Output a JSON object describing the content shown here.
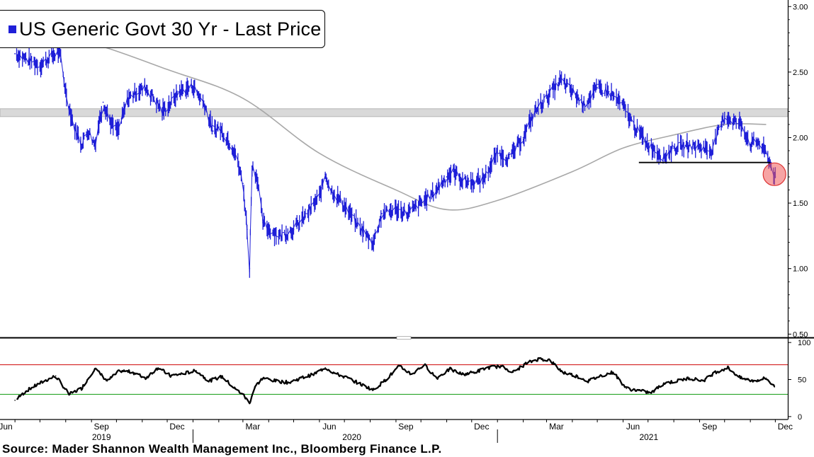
{
  "legend": {
    "label": "US Generic Govt 30 Yr - Last Price",
    "color": "#1f1fd8"
  },
  "source": "Source: Mader Shannon Wealth Management Inc., Bloomberg Finance L.P.",
  "chart_data": [
    {
      "type": "line",
      "series": [
        {
          "name": "US Generic Govt 30 Yr - Last Price",
          "color": "#1f1fd8",
          "x": [
            "2019-06-01",
            "2019-06-15",
            "2019-07-01",
            "2019-07-15",
            "2019-07-25",
            "2019-08-01",
            "2019-08-10",
            "2019-08-20",
            "2019-08-28",
            "2019-09-05",
            "2019-09-15",
            "2019-09-25",
            "2019-10-03",
            "2019-10-15",
            "2019-10-25",
            "2019-11-05",
            "2019-11-15",
            "2019-11-25",
            "2019-12-05",
            "2019-12-15",
            "2020-01-01",
            "2020-01-15",
            "2020-01-25",
            "2020-02-01",
            "2020-02-10",
            "2020-02-20",
            "2020-03-01",
            "2020-03-06",
            "2020-03-09",
            "2020-03-12",
            "2020-03-18",
            "2020-03-25",
            "2020-04-01",
            "2020-04-15",
            "2020-05-01",
            "2020-05-15",
            "2020-06-01",
            "2020-06-08",
            "2020-06-15",
            "2020-07-01",
            "2020-07-15",
            "2020-08-01",
            "2020-08-05",
            "2020-08-15",
            "2020-09-01",
            "2020-09-15",
            "2020-10-01",
            "2020-10-15",
            "2020-11-01",
            "2020-11-09",
            "2020-11-20",
            "2020-12-01",
            "2020-12-15",
            "2021-01-01",
            "2021-01-15",
            "2021-02-01",
            "2021-02-15",
            "2021-03-01",
            "2021-03-18",
            "2021-04-01",
            "2021-04-15",
            "2021-05-01",
            "2021-05-15",
            "2021-06-01",
            "2021-06-15",
            "2021-07-01",
            "2021-07-20",
            "2021-08-01",
            "2021-08-15",
            "2021-09-01",
            "2021-09-15",
            "2021-10-01",
            "2021-10-21",
            "2021-11-01",
            "2021-11-10",
            "2021-11-20",
            "2021-12-01"
          ],
          "values": [
            2.64,
            2.6,
            2.55,
            2.62,
            2.65,
            2.35,
            2.1,
            1.95,
            2.05,
            1.95,
            2.27,
            2.1,
            2.05,
            2.3,
            2.35,
            2.38,
            2.3,
            2.2,
            2.26,
            2.35,
            2.39,
            2.25,
            2.05,
            2.08,
            2.0,
            1.9,
            1.65,
            1.3,
            1.0,
            1.78,
            1.7,
            1.35,
            1.3,
            1.25,
            1.3,
            1.4,
            1.55,
            1.72,
            1.6,
            1.48,
            1.35,
            1.22,
            1.2,
            1.42,
            1.45,
            1.42,
            1.5,
            1.57,
            1.7,
            1.74,
            1.67,
            1.66,
            1.68,
            1.88,
            1.84,
            2.0,
            2.2,
            2.3,
            2.44,
            2.35,
            2.25,
            2.38,
            2.35,
            2.24,
            2.08,
            1.95,
            1.85,
            1.92,
            1.94,
            1.93,
            1.9,
            2.16,
            2.1,
            1.95,
            1.97,
            1.88,
            1.7
          ]
        },
        {
          "name": "",
          "color": "#a8a8a8",
          "x": [
            "2019-06-01",
            "2019-09-01",
            "2019-12-01",
            "2020-03-01",
            "2020-06-01",
            "2020-09-01",
            "2020-11-01",
            "2021-01-01",
            "2021-04-01",
            "2021-06-01",
            "2021-08-01",
            "2021-10-01",
            "2021-11-20"
          ],
          "values": [
            2.85,
            2.72,
            2.52,
            2.3,
            1.88,
            1.6,
            1.45,
            1.52,
            1.74,
            1.92,
            2.02,
            2.1,
            2.1
          ]
        }
      ],
      "x_ticks": [
        "Jun",
        "Sep",
        "Dec",
        "Mar",
        "Jun",
        "Sep",
        "Dec",
        "Mar",
        "Jun",
        "Sep",
        "Dec"
      ],
      "year_labels": [
        "2019",
        "2020",
        "2021"
      ],
      "y_ticks": [
        "0.50",
        "1.00",
        "1.50",
        "2.00",
        "2.50",
        "3.00"
      ],
      "ylim": [
        0.48,
        3.05
      ],
      "resistance_band": [
        2.16,
        2.22
      ],
      "support_line": {
        "value": 1.81,
        "from": "2021-06-20",
        "to": "2021-11-25"
      },
      "highlight": {
        "date": "2021-11-30",
        "value": 1.72
      }
    },
    {
      "type": "line",
      "series": [
        {
          "name": "",
          "color": "#000000",
          "x": [
            "2019-06-01",
            "2019-06-15",
            "2019-07-01",
            "2019-07-20",
            "2019-08-05",
            "2019-08-20",
            "2019-09-05",
            "2019-09-20",
            "2019-10-05",
            "2019-10-20",
            "2019-11-05",
            "2019-11-20",
            "2019-12-05",
            "2019-12-20",
            "2020-01-05",
            "2020-01-20",
            "2020-02-05",
            "2020-02-20",
            "2020-03-01",
            "2020-03-09",
            "2020-03-15",
            "2020-03-25",
            "2020-04-10",
            "2020-04-25",
            "2020-05-10",
            "2020-05-25",
            "2020-06-08",
            "2020-06-20",
            "2020-07-05",
            "2020-07-20",
            "2020-08-05",
            "2020-08-20",
            "2020-09-05",
            "2020-09-20",
            "2020-10-05",
            "2020-10-20",
            "2020-11-05",
            "2020-11-20",
            "2020-12-05",
            "2020-12-20",
            "2021-01-05",
            "2021-01-20",
            "2021-02-05",
            "2021-02-20",
            "2021-03-05",
            "2021-03-20",
            "2021-04-05",
            "2021-04-20",
            "2021-05-05",
            "2021-05-20",
            "2021-06-05",
            "2021-06-20",
            "2021-07-05",
            "2021-07-20",
            "2021-08-05",
            "2021-08-20",
            "2021-09-05",
            "2021-09-20",
            "2021-10-05",
            "2021-10-20",
            "2021-11-05",
            "2021-11-20",
            "2021-11-30"
          ],
          "values": [
            22,
            35,
            45,
            55,
            30,
            38,
            65,
            48,
            62,
            60,
            52,
            66,
            55,
            58,
            62,
            48,
            54,
            38,
            30,
            18,
            40,
            52,
            48,
            46,
            52,
            57,
            66,
            58,
            52,
            44,
            36,
            50,
            68,
            57,
            70,
            52,
            64,
            57,
            60,
            66,
            68,
            60,
            72,
            78,
            76,
            60,
            55,
            48,
            55,
            60,
            38,
            35,
            32,
            45,
            48,
            52,
            48,
            60,
            66,
            52,
            48,
            52,
            40
          ]
        }
      ],
      "y_ticks": [
        "0",
        "50",
        "100"
      ],
      "ylim": [
        -3,
        103
      ],
      "overbought": 70,
      "oversold": 30,
      "upper_color": "#d42020",
      "lower_color": "#2aa52a"
    }
  ]
}
